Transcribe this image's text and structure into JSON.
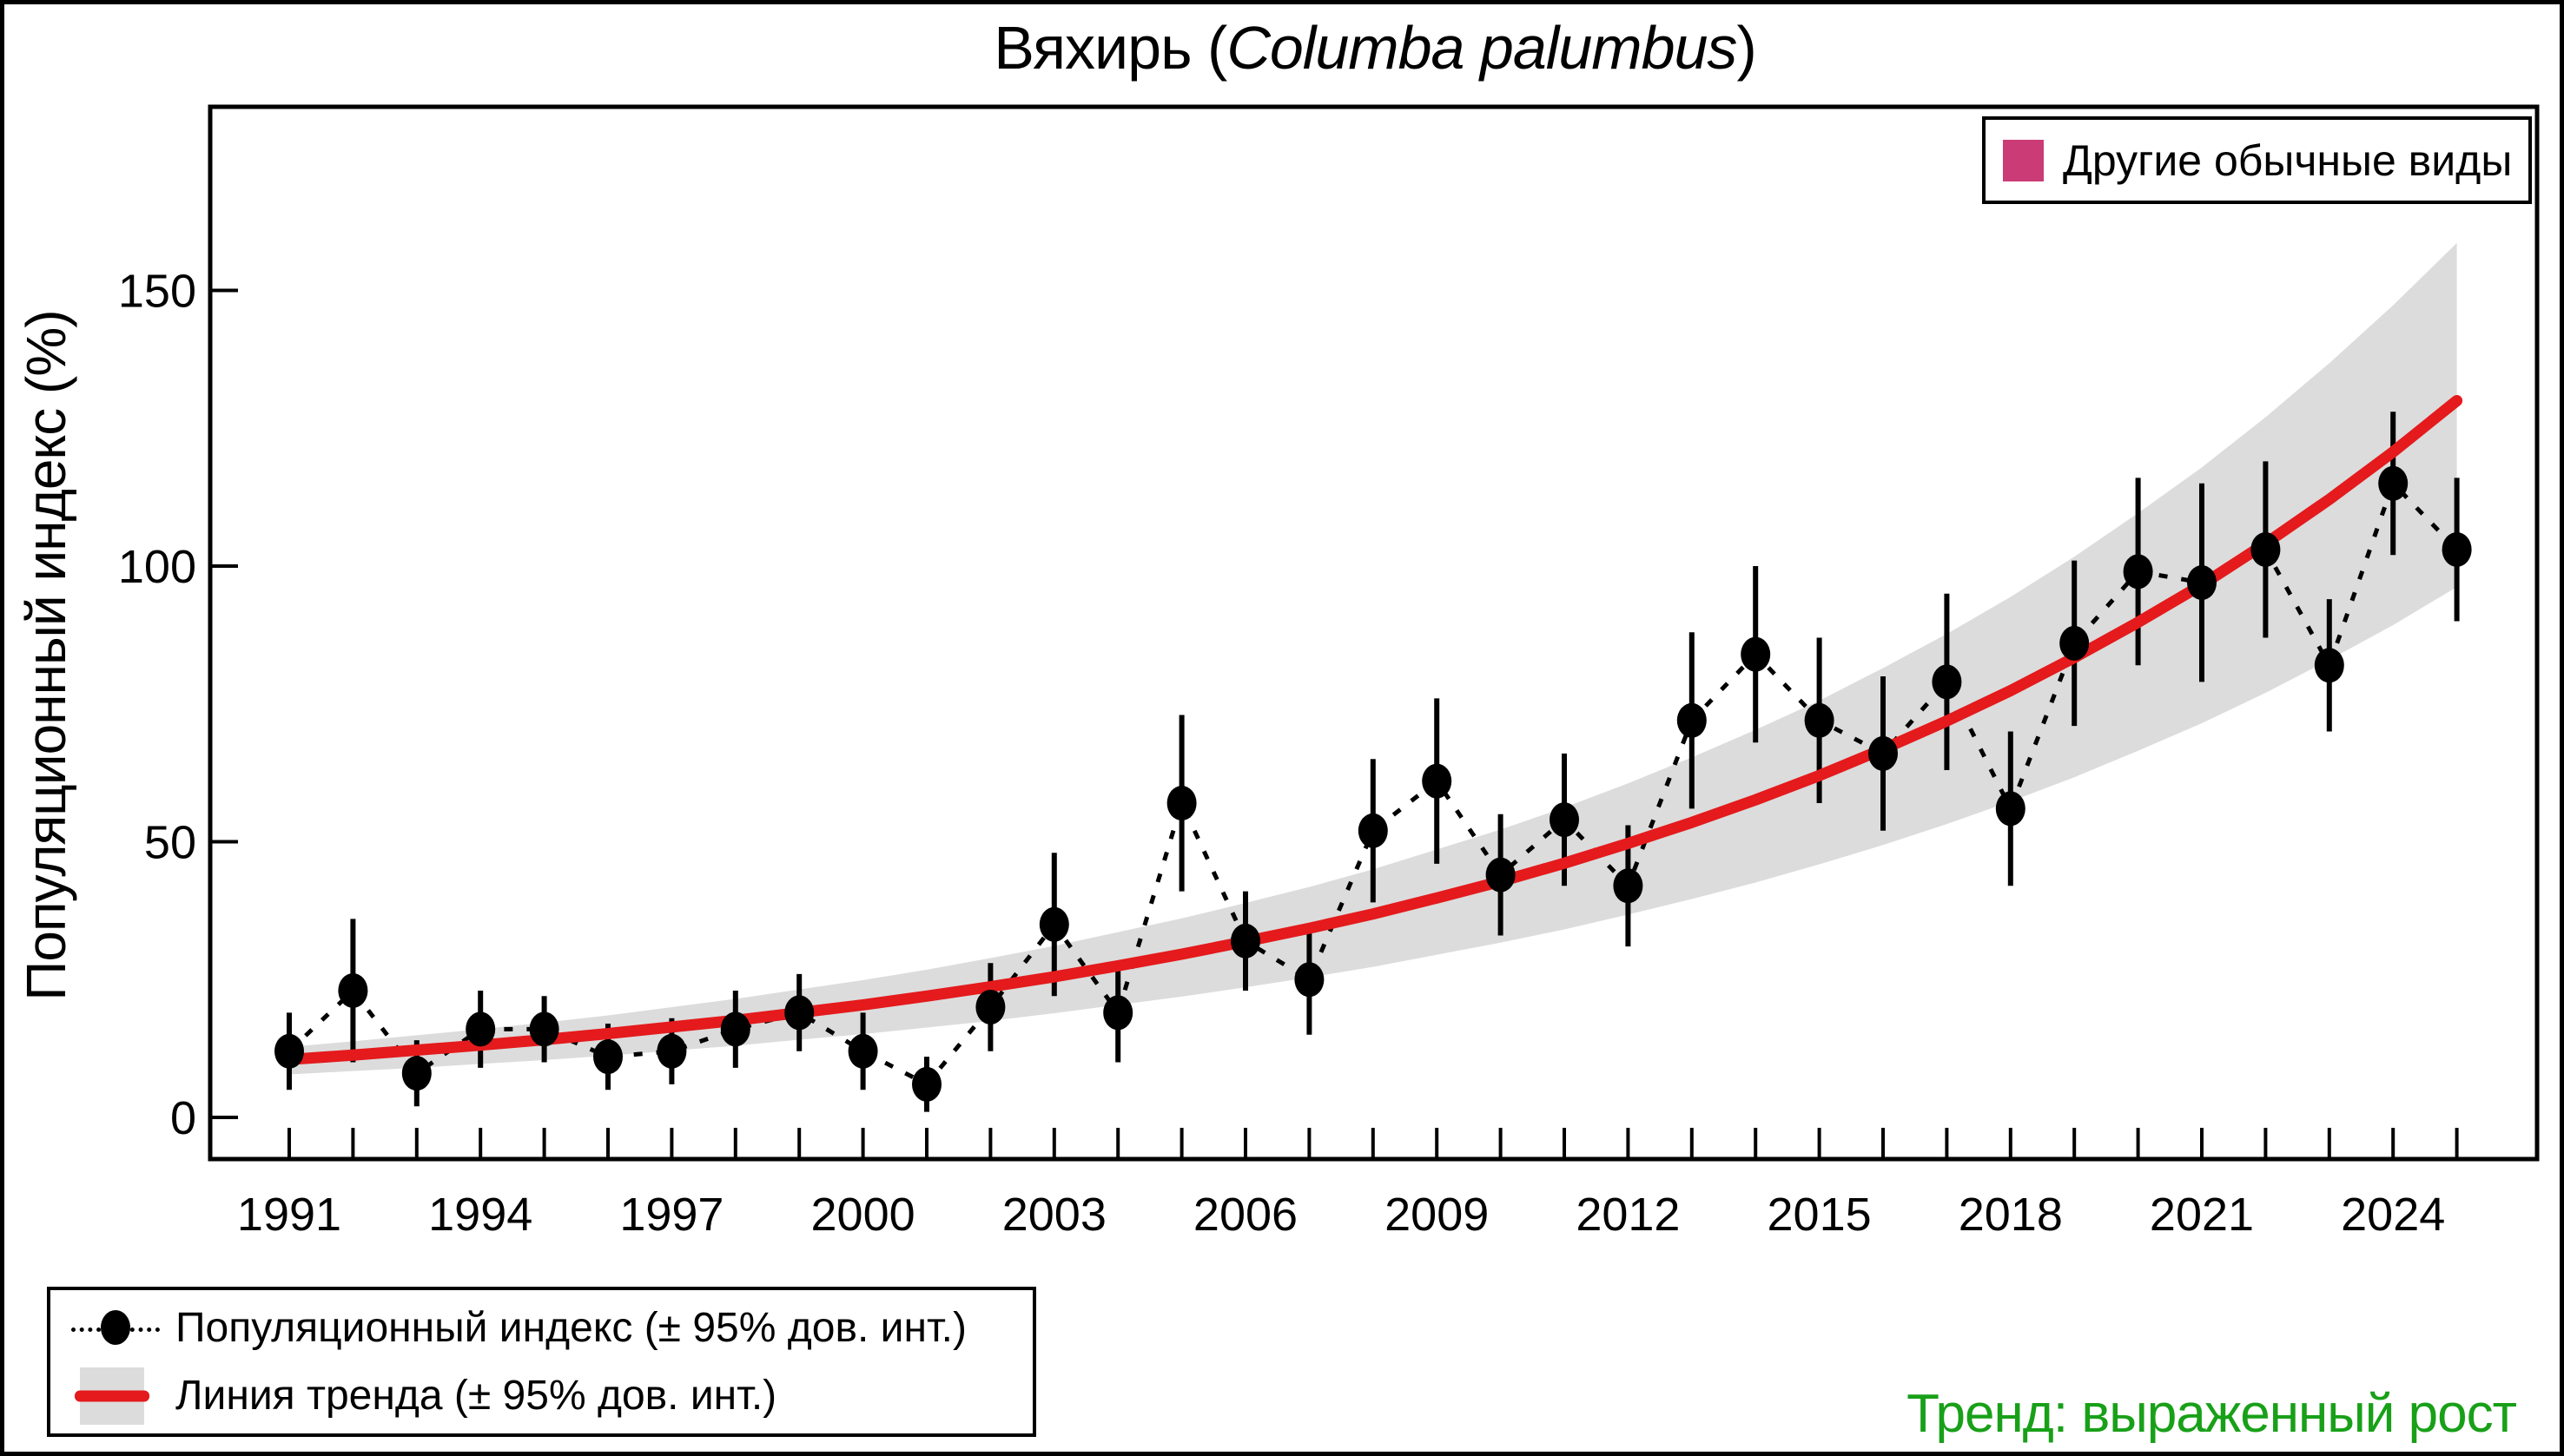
{
  "title": {
    "prefix": "Вяхирь (",
    "latin": "Columba palumbus",
    "suffix": ")"
  },
  "y_axis": {
    "label": "Популяционный индекс (%)",
    "ticks": [
      0,
      50,
      100,
      150
    ]
  },
  "x_axis": {
    "labeled_ticks": [
      1991,
      1994,
      1997,
      2000,
      2003,
      2006,
      2009,
      2012,
      2015,
      2018,
      2021,
      2024
    ],
    "minor_tick_every_year": true
  },
  "legend_top": {
    "label": "Другие обычные виды"
  },
  "legend_main": {
    "items": [
      {
        "label": "Популяционный индекс (± 95% дов. инт.)",
        "marker": "black-dot-on-dotted-line"
      },
      {
        "label": "Линия тренда (± 95% дов. инт.)",
        "marker": "red-line-on-gray-band"
      }
    ]
  },
  "trend_note": {
    "text": "Тренд: выраженный рост"
  },
  "colors": {
    "trend_red": "#E41A1C",
    "confidence_band": "#DCDCDC",
    "other_species_magenta": "#CB3B76",
    "trend_note_green": "#18A018",
    "points_black": "#000000",
    "background": "#FFFFFF"
  },
  "chart_data": {
    "type": "scatter",
    "title": "Вяхирь (Columba palumbus)",
    "xlabel": "",
    "ylabel": "Популяционный индекс (%)",
    "ylim": [
      -8,
      184
    ],
    "xlim": [
      1989.8,
      2026.2
    ],
    "grid": false,
    "legend_position": "top-right-inside and bottom-left-outside",
    "x": [
      1991,
      1992,
      1993,
      1994,
      1995,
      1996,
      1997,
      1998,
      1999,
      2000,
      2001,
      2002,
      2003,
      2004,
      2005,
      2006,
      2007,
      2008,
      2009,
      2010,
      2011,
      2012,
      2013,
      2014,
      2015,
      2016,
      2017,
      2018,
      2019,
      2020,
      2021,
      2022,
      2023,
      2024,
      2025
    ],
    "series": [
      {
        "name": "Популяционный индекс (± 95% дов. инт.)",
        "type": "points-with-errorbars-and-dotted-connector",
        "values": [
          12,
          23,
          8,
          16,
          16,
          11,
          12,
          16,
          19,
          12,
          6,
          20,
          35,
          19,
          57,
          32,
          25,
          52,
          61,
          44,
          54,
          42,
          72,
          84,
          72,
          66,
          79,
          56,
          86,
          99,
          97,
          103,
          82,
          115,
          103
        ],
        "ci_half": [
          7,
          13,
          6,
          7,
          6,
          6,
          6,
          7,
          7,
          7,
          5,
          8,
          13,
          9,
          16,
          9,
          10,
          13,
          15,
          11,
          12,
          11,
          16,
          16,
          15,
          14,
          16,
          14,
          15,
          17,
          18,
          16,
          12,
          13,
          13
        ]
      },
      {
        "name": "Линия тренда (± 95% дов. инт.)",
        "type": "line-with-confidence-band",
        "values": [
          10.5,
          11.3,
          12.2,
          13.1,
          14.1,
          15.2,
          16.4,
          17.6,
          19.0,
          20.4,
          22.0,
          23.7,
          25.5,
          27.5,
          29.6,
          31.9,
          34.3,
          36.9,
          39.8,
          42.8,
          46.1,
          49.7,
          53.5,
          57.6,
          62.0,
          66.8,
          71.9,
          77.4,
          83.4,
          89.8,
          96.6,
          104.1,
          112.1,
          120.7,
          130.0
        ],
        "band_upper": [
          12.8,
          13.8,
          14.9,
          16.0,
          17.2,
          18.5,
          20.0,
          21.5,
          23.2,
          24.9,
          26.8,
          28.9,
          31.1,
          33.6,
          36.1,
          38.9,
          41.8,
          45.0,
          48.6,
          52.2,
          56.2,
          60.6,
          65.3,
          70.3,
          75.6,
          81.5,
          87.7,
          94.4,
          101.7,
          109.6,
          117.9,
          127.0,
          136.8,
          147.3,
          158.6
        ],
        "band_lower": [
          7.8,
          8.4,
          9.0,
          9.7,
          10.4,
          11.2,
          12.1,
          13.0,
          14.1,
          15.1,
          16.3,
          17.5,
          18.9,
          20.4,
          21.9,
          23.6,
          25.4,
          27.3,
          29.5,
          31.7,
          34.1,
          36.8,
          39.6,
          42.6,
          45.9,
          49.4,
          53.2,
          57.3,
          61.7,
          66.5,
          71.5,
          77.0,
          83.0,
          89.3,
          96.2
        ]
      }
    ],
    "other_series_note": "Другие обычные виды",
    "annotation": "Тренд: выраженный рост"
  }
}
